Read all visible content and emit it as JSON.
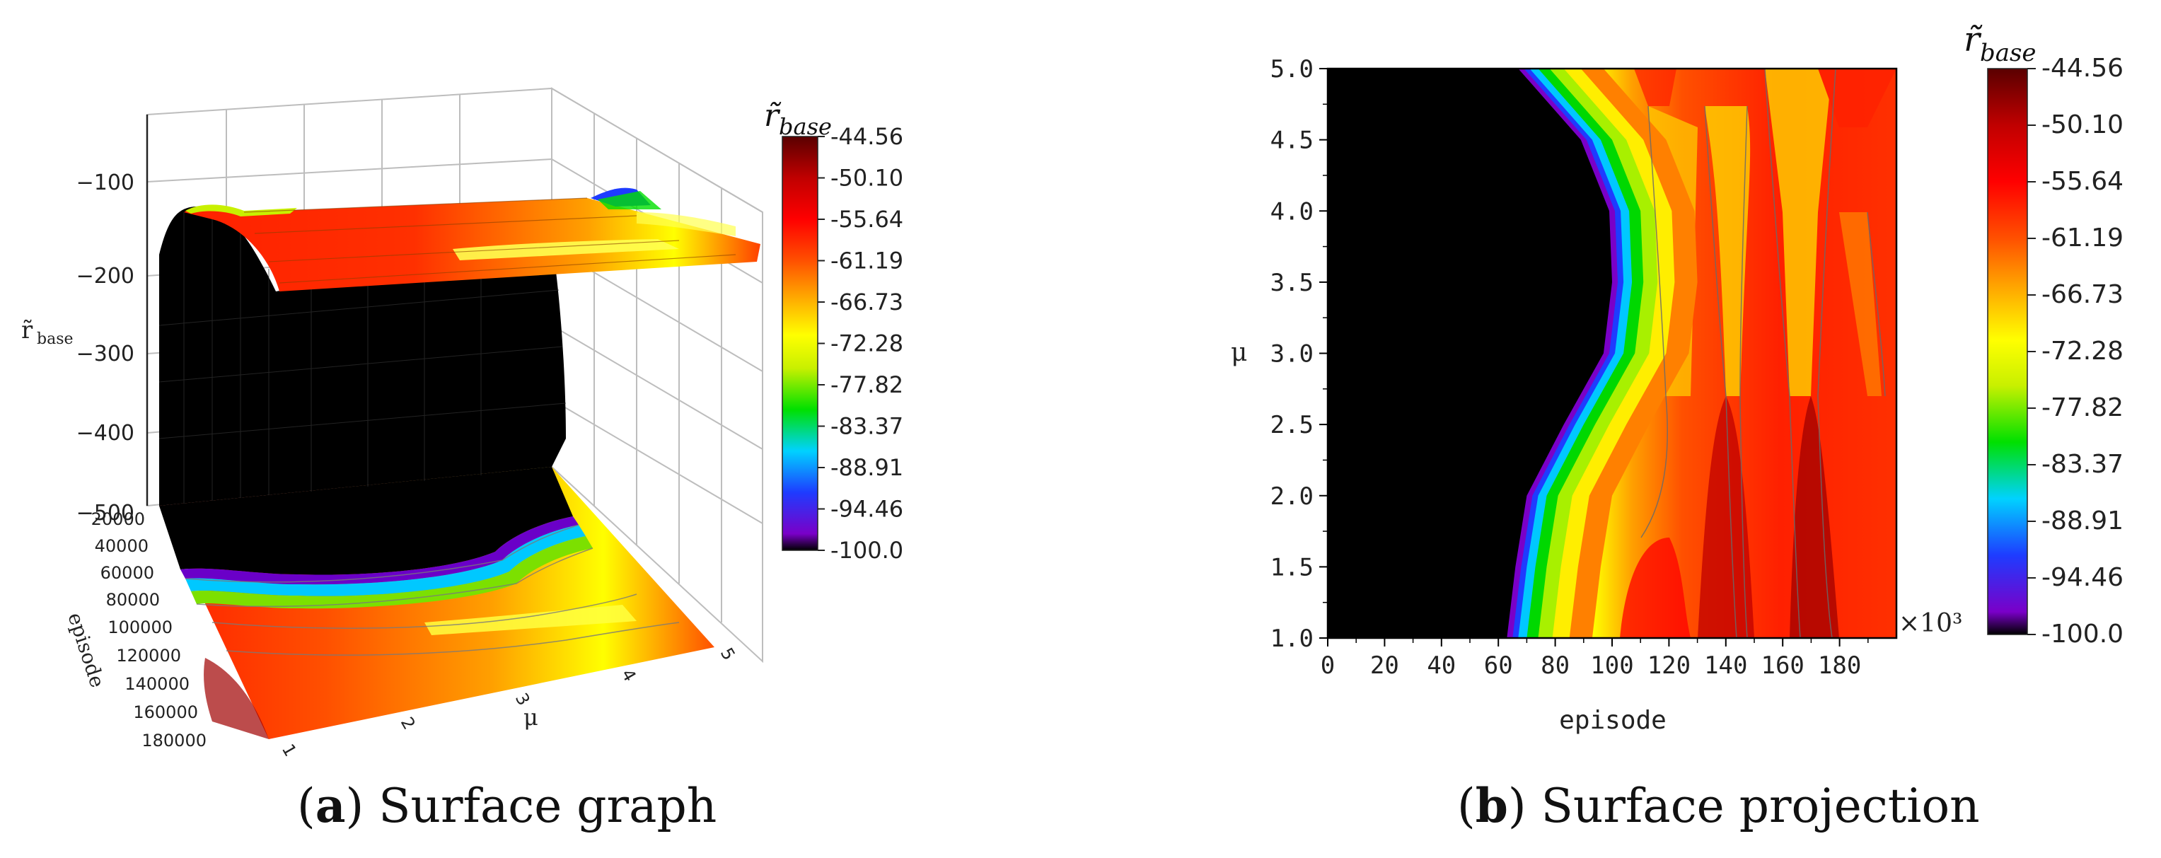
{
  "chart_data": [
    {
      "type": "surface",
      "caption_letter": "a",
      "caption_text": "Surface graph",
      "zlabel": "r̃",
      "zlabel_sub": "base",
      "xlabel": "μ",
      "ylabel": "episode",
      "z_ticks": [
        "−100",
        "−200",
        "−300",
        "−400",
        "−500"
      ],
      "episode_ticks": [
        "20000",
        "40000",
        "60000",
        "80000",
        "100000",
        "120000",
        "140000",
        "160000",
        "180000"
      ],
      "mu_ticks": [
        "1",
        "2",
        "3",
        "4",
        "5"
      ],
      "zlim": [
        -500,
        -44.56
      ],
      "colorbar_title": "r̃base",
      "colorbar_ticks": [
        "-44.56",
        "-50.10",
        "-55.64",
        "-61.19",
        "-66.73",
        "-72.28",
        "-77.82",
        "-83.37",
        "-88.91",
        "-94.46",
        "-100.0"
      ]
    },
    {
      "type": "heatmap",
      "caption_letter": "b",
      "caption_text": "Surface projection",
      "xlabel": "episode",
      "ylabel": "μ",
      "x_ticks": [
        "0",
        "20",
        "40",
        "60",
        "80",
        "100",
        "120",
        "140",
        "160",
        "180"
      ],
      "y_ticks": [
        "1.0",
        "1.5",
        "2.0",
        "2.5",
        "3.0",
        "3.5",
        "4.0",
        "4.5",
        "5.0"
      ],
      "x_multiplier": "×10³",
      "xlim": [
        0,
        200
      ],
      "ylim": [
        1.0,
        5.0
      ],
      "colorbar_title": "r̃base",
      "colorbar_ticks": [
        "-44.56",
        "-50.10",
        "-55.64",
        "-61.19",
        "-66.73",
        "-72.28",
        "-77.82",
        "-83.37",
        "-88.91",
        "-94.46",
        "-100.0"
      ],
      "colorscale": [
        "#000000",
        "#7a00c8",
        "#1e3cff",
        "#00d2ff",
        "#00e000",
        "#c8f000",
        "#ffff00",
        "#ffa000",
        "#ff5000",
        "#ff0000",
        "#c00000",
        "#5a0000"
      ],
      "boundary_episode_by_mu": {
        "mu": [
          1.0,
          1.5,
          2.0,
          2.5,
          3.0,
          3.5,
          4.0,
          4.5,
          5.0
        ],
        "episode": [
          63,
          66,
          70,
          83,
          97,
          100,
          99,
          89,
          67
        ]
      }
    }
  ]
}
